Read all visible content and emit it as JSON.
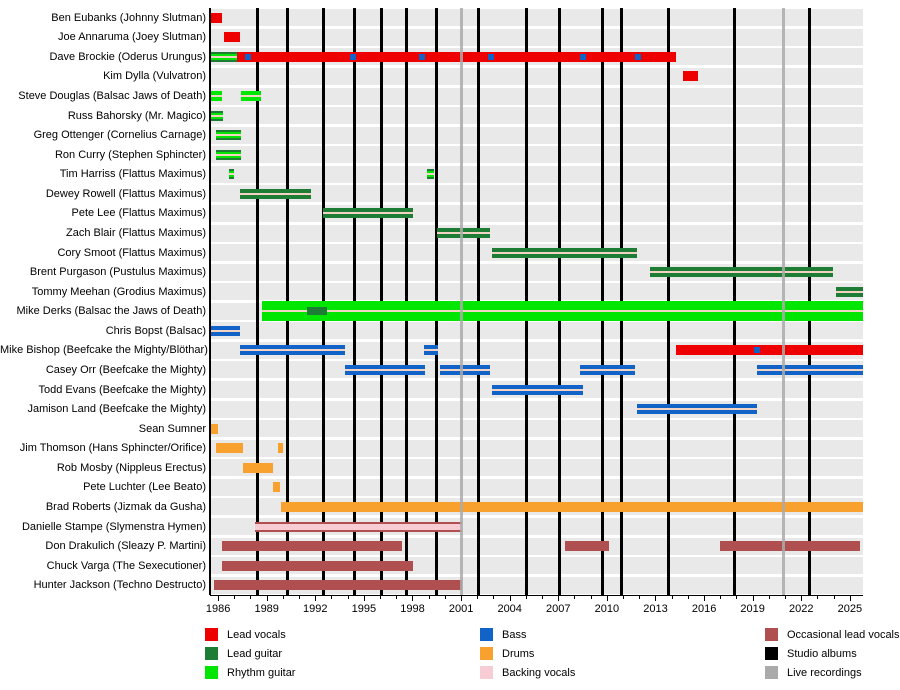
{
  "chart_data": {
    "type": "bar",
    "subtype": "membership-timeline",
    "x_domain": [
      1985.5,
      2025.81
    ],
    "x_ticks_major": [
      1986,
      1989,
      1992,
      1995,
      1998,
      2001,
      2004,
      2007,
      2010,
      2013,
      2016,
      2019,
      2022,
      2025
    ],
    "x_minor_tick_years": [
      1986,
      2025
    ],
    "grid": "off",
    "legend_position": "bottom",
    "rows": [
      {
        "label": "Ben Eubanks (Johnny Slutman)",
        "segments": [
          {
            "start": 1985.5,
            "end": 1986.25,
            "kind": "lead_vocals"
          }
        ]
      },
      {
        "label": "Joe Annaruma (Joey Slutman)",
        "segments": [
          {
            "start": 1986.35,
            "end": 1987.35,
            "kind": "lead_vocals"
          }
        ]
      },
      {
        "label": "Dave Brockie (Oderus Urungus)",
        "segments": [
          {
            "start": 1985.5,
            "end": 1987.15,
            "kind": "guitar_both"
          },
          {
            "start": 1987.15,
            "end": 2014.25,
            "kind": "lead_vocals"
          }
        ],
        "dots": [
          {
            "year": 1987.85,
            "kind": "bass"
          },
          {
            "year": 1994.3,
            "kind": "bass"
          },
          {
            "year": 1998.6,
            "kind": "bass"
          },
          {
            "year": 2002.85,
            "kind": "bass"
          },
          {
            "year": 2008.5,
            "kind": "bass"
          },
          {
            "year": 2011.9,
            "kind": "bass"
          }
        ]
      },
      {
        "label": "Kim Dylla (Vulvatron)",
        "segments": [
          {
            "start": 2014.7,
            "end": 2015.6,
            "kind": "lead_vocals"
          }
        ]
      },
      {
        "label": "Steve Douglas (Balsac Jaws of Death)",
        "segments": [
          {
            "start": 1985.5,
            "end": 1986.25,
            "kind": "rhythm_guitar"
          },
          {
            "start": 1987.4,
            "end": 1988.65,
            "kind": "rhythm_guitar"
          }
        ]
      },
      {
        "label": "Russ Bahorsky (Mr. Magico)",
        "segments": [
          {
            "start": 1985.5,
            "end": 1986.3,
            "kind": "guitar_both"
          }
        ]
      },
      {
        "label": "Greg Ottenger (Cornelius Carnage)",
        "segments": [
          {
            "start": 1985.9,
            "end": 1987.4,
            "kind": "guitar_both"
          }
        ]
      },
      {
        "label": "Ron Curry (Stephen Sphincter)",
        "segments": [
          {
            "start": 1985.9,
            "end": 1987.4,
            "kind": "guitar_both"
          }
        ]
      },
      {
        "label": "Tim Harriss (Flattus Maximus)",
        "segments": [
          {
            "start": 1986.65,
            "end": 1987.0,
            "kind": "guitar_both"
          },
          {
            "start": 1998.9,
            "end": 1999.3,
            "kind": "guitar_both"
          }
        ]
      },
      {
        "label": "Dewey Rowell (Flattus Maximus)",
        "segments": [
          {
            "start": 1987.35,
            "end": 1991.75,
            "kind": "lead_guitar"
          }
        ]
      },
      {
        "label": "Pete Lee (Flattus Maximus)",
        "segments": [
          {
            "start": 1992.5,
            "end": 1998.05,
            "kind": "lead_guitar"
          }
        ]
      },
      {
        "label": "Zach Blair (Flattus Maximus)",
        "segments": [
          {
            "start": 1999.5,
            "end": 2002.8,
            "kind": "lead_guitar"
          }
        ]
      },
      {
        "label": "Cory Smoot (Flattus Maximus)",
        "segments": [
          {
            "start": 2002.9,
            "end": 2011.85,
            "kind": "lead_guitar"
          }
        ]
      },
      {
        "label": "Brent Purgason (Pustulus Maximus)",
        "segments": [
          {
            "start": 2012.65,
            "end": 2023.95,
            "kind": "lead_guitar"
          }
        ]
      },
      {
        "label": "Tommy Meehan (Grodius Maximus)",
        "segments": [
          {
            "start": 2024.15,
            "end": 2025.81,
            "kind": "lead_guitar"
          }
        ]
      },
      {
        "label": "Mike Derks (Balsac the Jaws of Death)",
        "segments": [
          {
            "start": 1988.7,
            "end": 2025.81,
            "kind": "rhythm_thick"
          },
          {
            "start": 1991.5,
            "end": 1992.75,
            "kind": "lead_overlay"
          }
        ]
      },
      {
        "label": "Chris Bopst (Balsac)",
        "segments": [
          {
            "start": 1985.5,
            "end": 1987.35,
            "kind": "bass"
          }
        ]
      },
      {
        "label": "Mike Bishop (Beefcake the Mighty/Blöthar)",
        "segments": [
          {
            "start": 1987.35,
            "end": 1993.85,
            "kind": "bass"
          },
          {
            "start": 1998.7,
            "end": 1999.55,
            "kind": "bass"
          },
          {
            "start": 2014.25,
            "end": 2025.81,
            "kind": "lead_vocals"
          }
        ],
        "dots": [
          {
            "year": 2019.25,
            "kind": "bass"
          }
        ]
      },
      {
        "label": "Casey Orr (Beefcake the Mighty)",
        "segments": [
          {
            "start": 1993.85,
            "end": 1998.8,
            "kind": "bass"
          },
          {
            "start": 1999.7,
            "end": 2002.8,
            "kind": "bass"
          },
          {
            "start": 2008.35,
            "end": 2011.75,
            "kind": "bass"
          },
          {
            "start": 2019.25,
            "end": 2025.81,
            "kind": "bass"
          }
        ]
      },
      {
        "label": "Todd Evans (Beefcake the Mighty)",
        "segments": [
          {
            "start": 2002.9,
            "end": 2008.5,
            "kind": "bass"
          }
        ]
      },
      {
        "label": "Jamison Land (Beefcake the Mighty)",
        "segments": [
          {
            "start": 2011.85,
            "end": 2019.25,
            "kind": "bass"
          }
        ]
      },
      {
        "label": "Sean Sumner",
        "segments": [
          {
            "start": 1985.5,
            "end": 1986.0,
            "kind": "drums"
          }
        ]
      },
      {
        "label": "Jim Thomson (Hans Sphincter/Orifice)",
        "segments": [
          {
            "start": 1985.9,
            "end": 1987.55,
            "kind": "drums"
          },
          {
            "start": 1989.7,
            "end": 1990.0,
            "kind": "drums"
          }
        ]
      },
      {
        "label": "Rob Mosby (Nippleus Erectus)",
        "segments": [
          {
            "start": 1987.55,
            "end": 1989.4,
            "kind": "drums"
          }
        ]
      },
      {
        "label": "Pete Luchter (Lee Beato)",
        "segments": [
          {
            "start": 1989.4,
            "end": 1989.85,
            "kind": "drums"
          }
        ]
      },
      {
        "label": "Brad Roberts (Jizmak da Gusha)",
        "segments": [
          {
            "start": 1989.9,
            "end": 2025.81,
            "kind": "drums"
          }
        ]
      },
      {
        "label": "Danielle Stampe (Slymenstra Hymen)",
        "segments": [
          {
            "start": 1988.3,
            "end": 2001.05,
            "kind": "backing_occ"
          }
        ]
      },
      {
        "label": "Don Drakulich (Sleazy P. Martini)",
        "segments": [
          {
            "start": 1986.25,
            "end": 1997.35,
            "kind": "occasional"
          },
          {
            "start": 2007.4,
            "end": 2010.1,
            "kind": "occasional"
          },
          {
            "start": 2017.0,
            "end": 2025.6,
            "kind": "occasional"
          }
        ]
      },
      {
        "label": "Chuck Varga (The Sexecutioner)",
        "segments": [
          {
            "start": 1986.25,
            "end": 1998.05,
            "kind": "occasional"
          }
        ]
      },
      {
        "label": "Hunter Jackson (Techno Destructo)",
        "segments": [
          {
            "start": 1985.75,
            "end": 2001.05,
            "kind": "occasional"
          }
        ]
      }
    ],
    "album_lines": [
      1988.45,
      1990.3,
      1992.5,
      1994.45,
      1996.1,
      1997.65,
      1999.5,
      2002.05,
      2005.05,
      2007.1,
      2009.75,
      2010.9,
      2013.8,
      2017.9,
      2022.5
    ],
    "live_lines": [
      2001.05,
      2020.9
    ],
    "legend": {
      "columns": [
        [
          {
            "label": "Lead vocals",
            "color_key": "lead_vocals"
          },
          {
            "label": "Lead guitar",
            "color_key": "lead_guitar"
          },
          {
            "label": "Rhythm guitar",
            "color_key": "rhythm_guitar"
          }
        ],
        [
          {
            "label": "Bass",
            "color_key": "bass"
          },
          {
            "label": "Drums",
            "color_key": "drums"
          },
          {
            "label": "Backing vocals",
            "color_key": "backing_vocals"
          }
        ],
        [
          {
            "label": "Occasional lead vocals",
            "color_key": "occasional_lead_vocals"
          },
          {
            "label": "Studio albums",
            "color_key": "studio_albums"
          },
          {
            "label": "Live recordings",
            "color_key": "live_recordings"
          }
        ]
      ]
    }
  },
  "palette": {
    "lead_vocals": "#ee0000",
    "lead_guitar": "#1e7d34",
    "rhythm_guitar": "#00e600",
    "bass": "#1263c7",
    "drums": "#f9a12f",
    "backing_vocals": "#f8ccd4",
    "occasional_lead_vocals": "#b04f4f",
    "studio_albums": "#000000",
    "live_recordings": "#aaaaaa",
    "center_stripe": "#f2d3c4",
    "row_band": "#e9e9e9"
  }
}
